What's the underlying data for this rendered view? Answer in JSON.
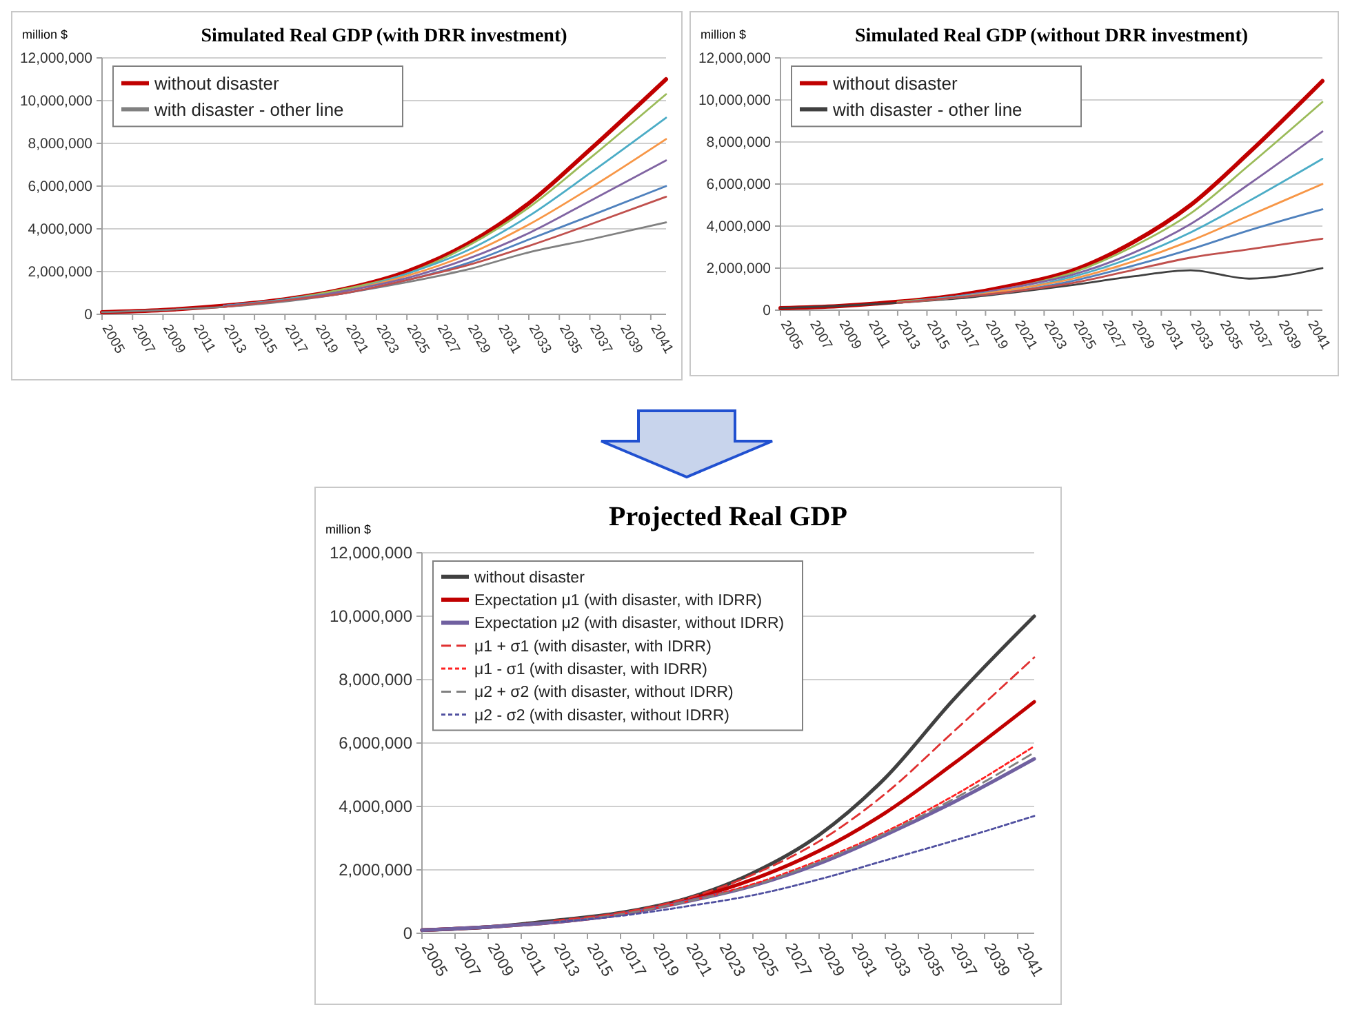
{
  "chart_data": [
    {
      "type": "line",
      "title": "Simulated Real GDP (with DRR investment)",
      "ylabel": "million  $",
      "xlim": [
        2005,
        2042
      ],
      "xticks": [
        2005,
        2007,
        2009,
        2011,
        2013,
        2015,
        2017,
        2019,
        2021,
        2023,
        2025,
        2027,
        2029,
        2031,
        2033,
        2035,
        2037,
        2039,
        2041
      ],
      "ylim": [
        0,
        12000000
      ],
      "yticks": [
        {
          "value": 0,
          "label": "0"
        },
        {
          "value": 2000000,
          "label": "2,000,000"
        },
        {
          "value": 4000000,
          "label": "4,000,000"
        },
        {
          "value": 6000000,
          "label": "6,000,000"
        },
        {
          "value": 8000000,
          "label": "8,000,000"
        },
        {
          "value": 10000000,
          "label": "10,000,000"
        },
        {
          "value": 12000000,
          "label": "12,000,000"
        }
      ],
      "grid": "y",
      "legend": "top left",
      "marker": "none",
      "x": [
        2005,
        2009,
        2013,
        2017,
        2021,
        2025,
        2029,
        2033,
        2037,
        2042
      ],
      "series": [
        {
          "name": "without disaster",
          "color": "#c00000",
          "values": [
            100000,
            200000,
            400000,
            700000,
            1200000,
            2000000,
            3300000,
            5200000,
            7700000,
            11000000
          ]
        },
        {
          "name": "with disaster - other line",
          "color": "#808080",
          "values": [
            100000,
            200000,
            350000,
            600000,
            1000000,
            1500000,
            2100000,
            2900000,
            3500000,
            4300000
          ]
        },
        {
          "color": "#9bbb59",
          "values": [
            null,
            null,
            400000,
            700000,
            1200000,
            1900000,
            3200000,
            5000000,
            7300000,
            10300000
          ]
        },
        {
          "color": "#4bacc6",
          "values": [
            null,
            null,
            400000,
            700000,
            1100000,
            1900000,
            3000000,
            4600000,
            6600000,
            9200000
          ]
        },
        {
          "color": "#f79646",
          "values": [
            null,
            null,
            400000,
            650000,
            1100000,
            1800000,
            2800000,
            4200000,
            5900000,
            8200000
          ]
        },
        {
          "color": "#8064a2",
          "values": [
            null,
            null,
            400000,
            650000,
            1100000,
            1700000,
            2600000,
            3800000,
            5300000,
            7200000
          ]
        },
        {
          "color": "#4f81bd",
          "values": [
            null,
            null,
            400000,
            650000,
            1000000,
            1600000,
            2400000,
            3500000,
            4600000,
            6000000
          ]
        },
        {
          "color": "#c0504d",
          "values": [
            null,
            null,
            350000,
            650000,
            1000000,
            1600000,
            2300000,
            3200000,
            4200000,
            5500000
          ]
        }
      ]
    },
    {
      "type": "line",
      "title": "Simulated Real GDP (without DRR investment)",
      "ylabel": "million  $",
      "xlim": [
        2005,
        2042
      ],
      "xticks": [
        2005,
        2007,
        2009,
        2011,
        2013,
        2015,
        2017,
        2019,
        2021,
        2023,
        2025,
        2027,
        2029,
        2031,
        2033,
        2035,
        2037,
        2039,
        2041
      ],
      "ylim": [
        0,
        12000000
      ],
      "yticks": [
        {
          "value": 0,
          "label": "0"
        },
        {
          "value": 2000000,
          "label": "2,000,000"
        },
        {
          "value": 4000000,
          "label": "4,000,000"
        },
        {
          "value": 6000000,
          "label": "6,000,000"
        },
        {
          "value": 8000000,
          "label": "8,000,000"
        },
        {
          "value": 10000000,
          "label": "10,000,000"
        },
        {
          "value": 12000000,
          "label": "12,000,000"
        }
      ],
      "grid": "y",
      "legend": "top left",
      "marker": "none",
      "x": [
        2005,
        2009,
        2013,
        2017,
        2021,
        2025,
        2029,
        2033,
        2037,
        2042
      ],
      "series": [
        {
          "name": "without disaster",
          "color": "#c00000",
          "values": [
            100000,
            200000,
            400000,
            700000,
            1200000,
            1900000,
            3200000,
            5000000,
            7500000,
            10900000
          ]
        },
        {
          "name": "with disaster - other line",
          "color": "#404040",
          "values": [
            100000,
            200000,
            350000,
            550000,
            850000,
            1200000,
            1600000,
            1900000,
            1500000,
            2000000
          ]
        },
        {
          "color": "#9bbb59",
          "values": [
            null,
            null,
            400000,
            650000,
            1100000,
            1800000,
            3000000,
            4600000,
            6900000,
            9900000
          ]
        },
        {
          "color": "#8064a2",
          "values": [
            null,
            null,
            350000,
            650000,
            1100000,
            1700000,
            2700000,
            4100000,
            6000000,
            8500000
          ]
        },
        {
          "color": "#4bacc6",
          "values": [
            null,
            null,
            350000,
            650000,
            1000000,
            1600000,
            2500000,
            3700000,
            5200000,
            7200000
          ]
        },
        {
          "color": "#f79646",
          "values": [
            null,
            null,
            350000,
            600000,
            1000000,
            1500000,
            2300000,
            3300000,
            4500000,
            6000000
          ]
        },
        {
          "color": "#4f81bd",
          "values": [
            null,
            null,
            350000,
            600000,
            900000,
            1400000,
            2100000,
            2900000,
            3800000,
            4800000
          ]
        },
        {
          "color": "#c0504d",
          "values": [
            null,
            null,
            350000,
            600000,
            900000,
            1300000,
            1900000,
            2500000,
            2900000,
            3400000
          ]
        }
      ]
    },
    {
      "type": "line",
      "title": "Projected Real GDP",
      "ylabel": "million  $",
      "xlim": [
        2005,
        2042
      ],
      "xticks": [
        2005,
        2007,
        2009,
        2011,
        2013,
        2015,
        2017,
        2019,
        2021,
        2023,
        2025,
        2027,
        2029,
        2031,
        2033,
        2035,
        2037,
        2039,
        2041
      ],
      "ylim": [
        0,
        12000000
      ],
      "yticks": [
        {
          "value": 0,
          "label": "0"
        },
        {
          "value": 2000000,
          "label": "2,000,000"
        },
        {
          "value": 4000000,
          "label": "4,000,000"
        },
        {
          "value": 6000000,
          "label": "6,000,000"
        },
        {
          "value": 8000000,
          "label": "8,000,000"
        },
        {
          "value": 10000000,
          "label": "10,000,000"
        },
        {
          "value": 12000000,
          "label": "12,000,000"
        }
      ],
      "grid": "y",
      "legend": "top left",
      "marker": "none",
      "x": [
        2005,
        2009,
        2013,
        2017,
        2021,
        2025,
        2029,
        2033,
        2037,
        2042
      ],
      "series": [
        {
          "name": "without disaster",
          "color": "#404040",
          "line_style": "solid",
          "values": [
            100000,
            200000,
            400000,
            650000,
            1100000,
            1900000,
            3100000,
            4900000,
            7300000,
            10000000
          ]
        },
        {
          "name": "Expectation μ1 (with disaster, with IDRR)",
          "color": "#c00000",
          "line_style": "solid",
          "values": [
            100000,
            200000,
            350000,
            600000,
            1050000,
            1700000,
            2600000,
            3800000,
            5300000,
            7300000
          ]
        },
        {
          "name": "Expectation μ2 (with disaster, without IDRR)",
          "color": "#7060a0",
          "line_style": "solid",
          "values": [
            100000,
            200000,
            350000,
            600000,
            1000000,
            1500000,
            2200000,
            3100000,
            4100000,
            5500000
          ]
        },
        {
          "name": "μ1 + σ1 (with disaster, with IDRR)",
          "color": "#e03030",
          "line_style": "dashed",
          "values": [
            null,
            null,
            400000,
            650000,
            1100000,
            1850000,
            2900000,
            4400000,
            6300000,
            8700000
          ]
        },
        {
          "name": "μ1 - σ1 (with disaster, with IDRR)",
          "color": "#ff2020",
          "line_style": "dotted",
          "values": [
            null,
            null,
            350000,
            600000,
            1000000,
            1550000,
            2300000,
            3200000,
            4300000,
            5900000
          ]
        },
        {
          "name": "μ2 + σ2 (with disaster, without IDRR)",
          "color": "#808080",
          "line_style": "dashed",
          "values": [
            null,
            null,
            350000,
            600000,
            1000000,
            1500000,
            2250000,
            3150000,
            4200000,
            5700000
          ]
        },
        {
          "name": "μ2 - σ2 (with disaster, without IDRR)",
          "color": "#5050a0",
          "line_style": "dotted",
          "values": [
            null,
            null,
            350000,
            550000,
            850000,
            1200000,
            1700000,
            2300000,
            2900000,
            3700000
          ]
        }
      ]
    }
  ]
}
